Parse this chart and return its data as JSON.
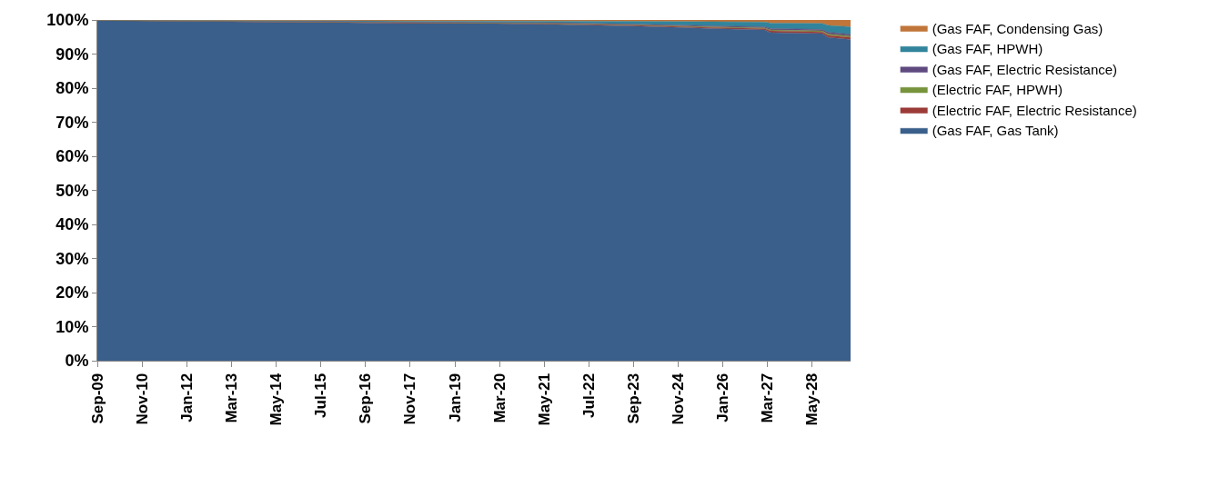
{
  "chart_data": {
    "type": "area",
    "stacked": true,
    "x": [
      "2009-09",
      "2011-09",
      "2013-09",
      "2015-09",
      "2017-09",
      "2019-09",
      "2021-09",
      "2023-09",
      "2025-09",
      "2027-02",
      "2027-04",
      "2028-08",
      "2028-10",
      "2029-05"
    ],
    "series": [
      {
        "name": "(Gas FAF, Gas Tank)",
        "color": "#3a5f8b",
        "values": [
          99.9,
          99.6,
          99.4,
          99.3,
          99.0,
          99.0,
          98.7,
          98.2,
          97.5,
          97.1,
          96.3,
          96.0,
          94.9,
          94.3
        ]
      },
      {
        "name": "(Electric FAF, Electric Resistance)",
        "color": "#9b3b38",
        "values": [
          0,
          0.1,
          0.1,
          0.1,
          0.2,
          0.1,
          0.2,
          0.3,
          0.3,
          0.4,
          0.5,
          0.5,
          0.6,
          0.6
        ]
      },
      {
        "name": "(Electric FAF, HPWH)",
        "color": "#77933c",
        "values": [
          0,
          0,
          0.1,
          0.1,
          0.1,
          0.1,
          0.1,
          0.1,
          0.2,
          0.2,
          0.3,
          0.3,
          0.4,
          0.4
        ]
      },
      {
        "name": "(Gas FAF, Electric Resistance)",
        "color": "#5f4a7f",
        "values": [
          0,
          0.1,
          0.1,
          0.1,
          0.1,
          0.1,
          0.2,
          0.2,
          0.3,
          0.3,
          0.4,
          0.4,
          0.5,
          0.5
        ]
      },
      {
        "name": "(Gas FAF, HPWH)",
        "color": "#31849b",
        "values": [
          0,
          0.1,
          0.1,
          0.2,
          0.3,
          0.4,
          0.5,
          0.8,
          1.2,
          1.4,
          1.6,
          1.8,
          2.0,
          2.2
        ]
      },
      {
        "name": "(Gas FAF, Condensing Gas)",
        "color": "#c0763a",
        "values": [
          0.1,
          0.1,
          0.2,
          0.2,
          0.3,
          0.3,
          0.3,
          0.4,
          0.5,
          0.6,
          0.9,
          1.0,
          1.6,
          2.0
        ]
      }
    ],
    "xlim": [
      "2009-09",
      "2029-05"
    ],
    "xticks": [
      {
        "value": "2009-09",
        "label": "Sep-09"
      },
      {
        "value": "2010-11",
        "label": "Nov-10"
      },
      {
        "value": "2012-01",
        "label": "Jan-12"
      },
      {
        "value": "2013-03",
        "label": "Mar-13"
      },
      {
        "value": "2014-05",
        "label": "May-14"
      },
      {
        "value": "2015-07",
        "label": "Jul-15"
      },
      {
        "value": "2016-09",
        "label": "Sep-16"
      },
      {
        "value": "2017-11",
        "label": "Nov-17"
      },
      {
        "value": "2019-01",
        "label": "Jan-19"
      },
      {
        "value": "2020-03",
        "label": "Mar-20"
      },
      {
        "value": "2021-05",
        "label": "May-21"
      },
      {
        "value": "2022-07",
        "label": "Jul-22"
      },
      {
        "value": "2023-09",
        "label": "Sep-23"
      },
      {
        "value": "2024-11",
        "label": "Nov-24"
      },
      {
        "value": "2026-01",
        "label": "Jan-26"
      },
      {
        "value": "2027-03",
        "label": "Mar-27"
      },
      {
        "value": "2028-05",
        "label": "May-28"
      }
    ],
    "ylim": [
      0,
      100
    ],
    "yticks": [
      {
        "value": 0,
        "label": "0%"
      },
      {
        "value": 10,
        "label": "10%"
      },
      {
        "value": 20,
        "label": "20%"
      },
      {
        "value": 30,
        "label": "30%"
      },
      {
        "value": 40,
        "label": "40%"
      },
      {
        "value": 50,
        "label": "50%"
      },
      {
        "value": 60,
        "label": "60%"
      },
      {
        "value": 70,
        "label": "70%"
      },
      {
        "value": 80,
        "label": "80%"
      },
      {
        "value": 90,
        "label": "90%"
      },
      {
        "value": 100,
        "label": "100%"
      }
    ],
    "legend": "right"
  }
}
